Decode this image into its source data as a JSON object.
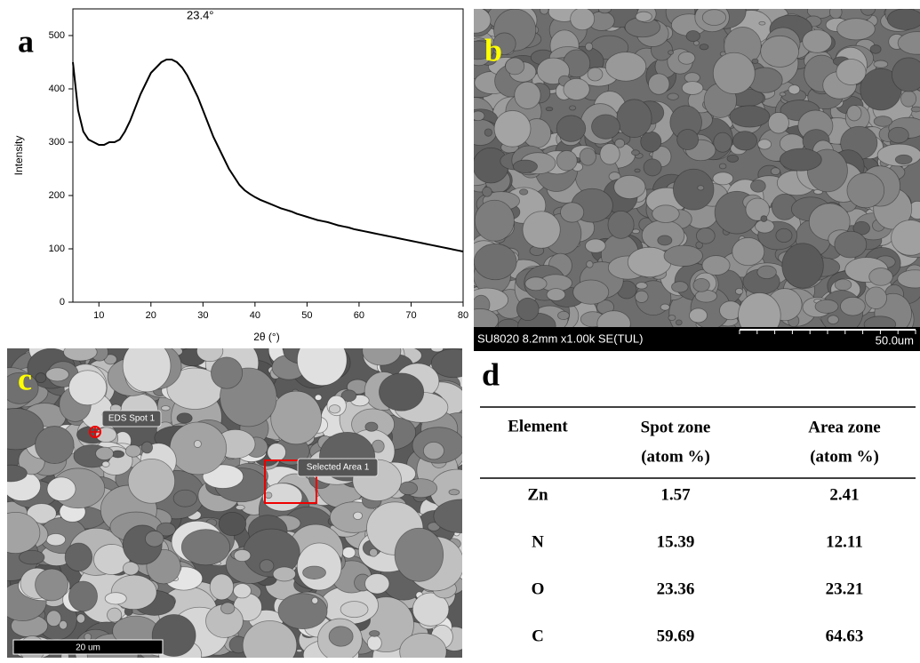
{
  "chart_data": {
    "type": "line",
    "panel_label": "a",
    "x_label": "2θ (°)",
    "y_label": "Intensity",
    "annotation": "23.4°",
    "x": [
      5,
      6,
      7,
      8,
      9,
      10,
      11,
      12,
      13,
      14,
      15,
      16,
      17,
      18,
      19,
      20,
      21,
      22,
      23,
      24,
      25,
      26,
      27,
      28,
      29,
      30,
      31,
      32,
      33,
      34,
      35,
      36,
      37,
      38,
      39,
      40,
      41,
      42,
      43,
      44,
      45,
      46,
      47,
      48,
      49,
      50,
      51,
      52,
      53,
      54,
      55,
      56,
      57,
      58,
      59,
      60,
      61,
      62,
      63,
      64,
      65,
      66,
      67,
      68,
      69,
      70,
      71,
      72,
      73,
      74,
      75,
      76,
      77,
      78,
      79,
      80
    ],
    "values": [
      450,
      360,
      320,
      305,
      300,
      295,
      295,
      300,
      300,
      305,
      320,
      340,
      365,
      390,
      410,
      430,
      440,
      450,
      455,
      455,
      450,
      440,
      425,
      405,
      385,
      360,
      335,
      310,
      290,
      270,
      250,
      235,
      220,
      210,
      203,
      197,
      192,
      188,
      184,
      180,
      176,
      173,
      170,
      166,
      163,
      160,
      157,
      154,
      152,
      150,
      147,
      144,
      142,
      140,
      137,
      135,
      133,
      131,
      129,
      127,
      125,
      123,
      121,
      119,
      117,
      115,
      113,
      111,
      109,
      107,
      105,
      103,
      101,
      99,
      97,
      95
    ],
    "color": "#000000",
    "xlim": [
      5,
      80
    ],
    "ylim": [
      0,
      550
    ],
    "xticks": [
      10,
      20,
      30,
      40,
      50,
      60,
      70,
      80
    ],
    "yticks": [
      0,
      100,
      200,
      300,
      400,
      500
    ]
  },
  "panels": {
    "b": {
      "label": "b",
      "info": "SU8020 8.2mm x1.00k SE(TUL)",
      "scale": "50.0um"
    },
    "c": {
      "label": "c",
      "spot": "EDS Spot 1",
      "area": "Selected Area 1",
      "scale": "20 um"
    }
  },
  "table": {
    "label": "d",
    "header": [
      [
        "Element"
      ],
      [
        "Spot zone",
        "(atom %)"
      ],
      [
        "Area zone",
        "(atom %)"
      ]
    ],
    "rows": [
      [
        "Zn",
        1.57,
        2.41
      ],
      [
        "N",
        15.39,
        12.11
      ],
      [
        "O",
        23.36,
        23.21
      ],
      [
        "C",
        59.69,
        64.63
      ]
    ]
  }
}
